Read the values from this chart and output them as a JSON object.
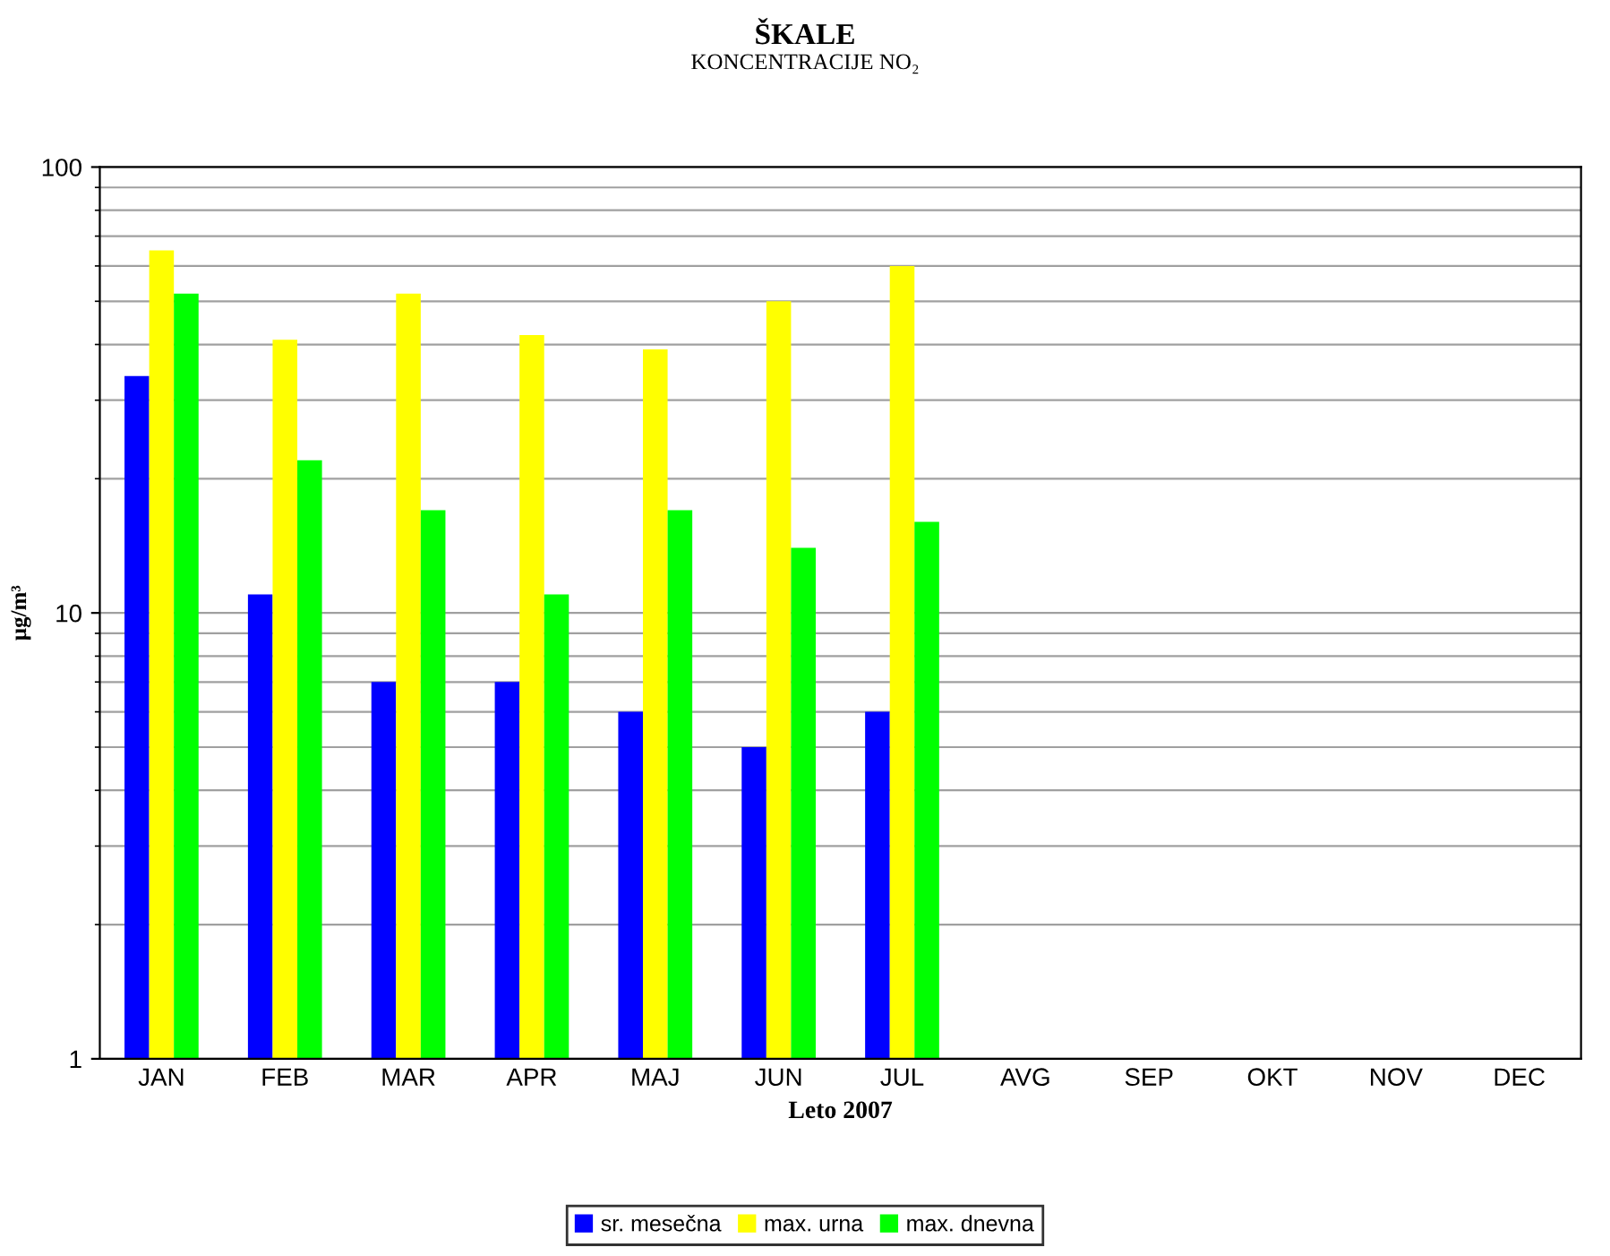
{
  "chart_data": {
    "type": "bar",
    "title": "ŠKALE",
    "subtitle": "KONCENTRACIJE NO₂",
    "xlabel": "Leto 2007",
    "ylabel": "μg/m³",
    "categories": [
      "JAN",
      "FEB",
      "MAR",
      "APR",
      "MAJ",
      "JUN",
      "JUL",
      "AVG",
      "SEP",
      "OKT",
      "NOV",
      "DEC"
    ],
    "series": [
      {
        "name": "sr. mesečna",
        "color": "#0000ff",
        "values": [
          34,
          11,
          7,
          7,
          6,
          5,
          6,
          null,
          null,
          null,
          null,
          null
        ]
      },
      {
        "name": "max. urna",
        "color": "#ffff00",
        "values": [
          65,
          41,
          52,
          42,
          39,
          50,
          60,
          null,
          null,
          null,
          null,
          null
        ]
      },
      {
        "name": "max. dnevna",
        "color": "#00ff00",
        "values": [
          52,
          22,
          17,
          11,
          17,
          14,
          16,
          null,
          null,
          null,
          null,
          null
        ]
      }
    ],
    "log": true,
    "ylim": [
      1,
      100
    ],
    "yticks": [
      1,
      10,
      100
    ],
    "grid": "y",
    "legend": "bottom"
  }
}
